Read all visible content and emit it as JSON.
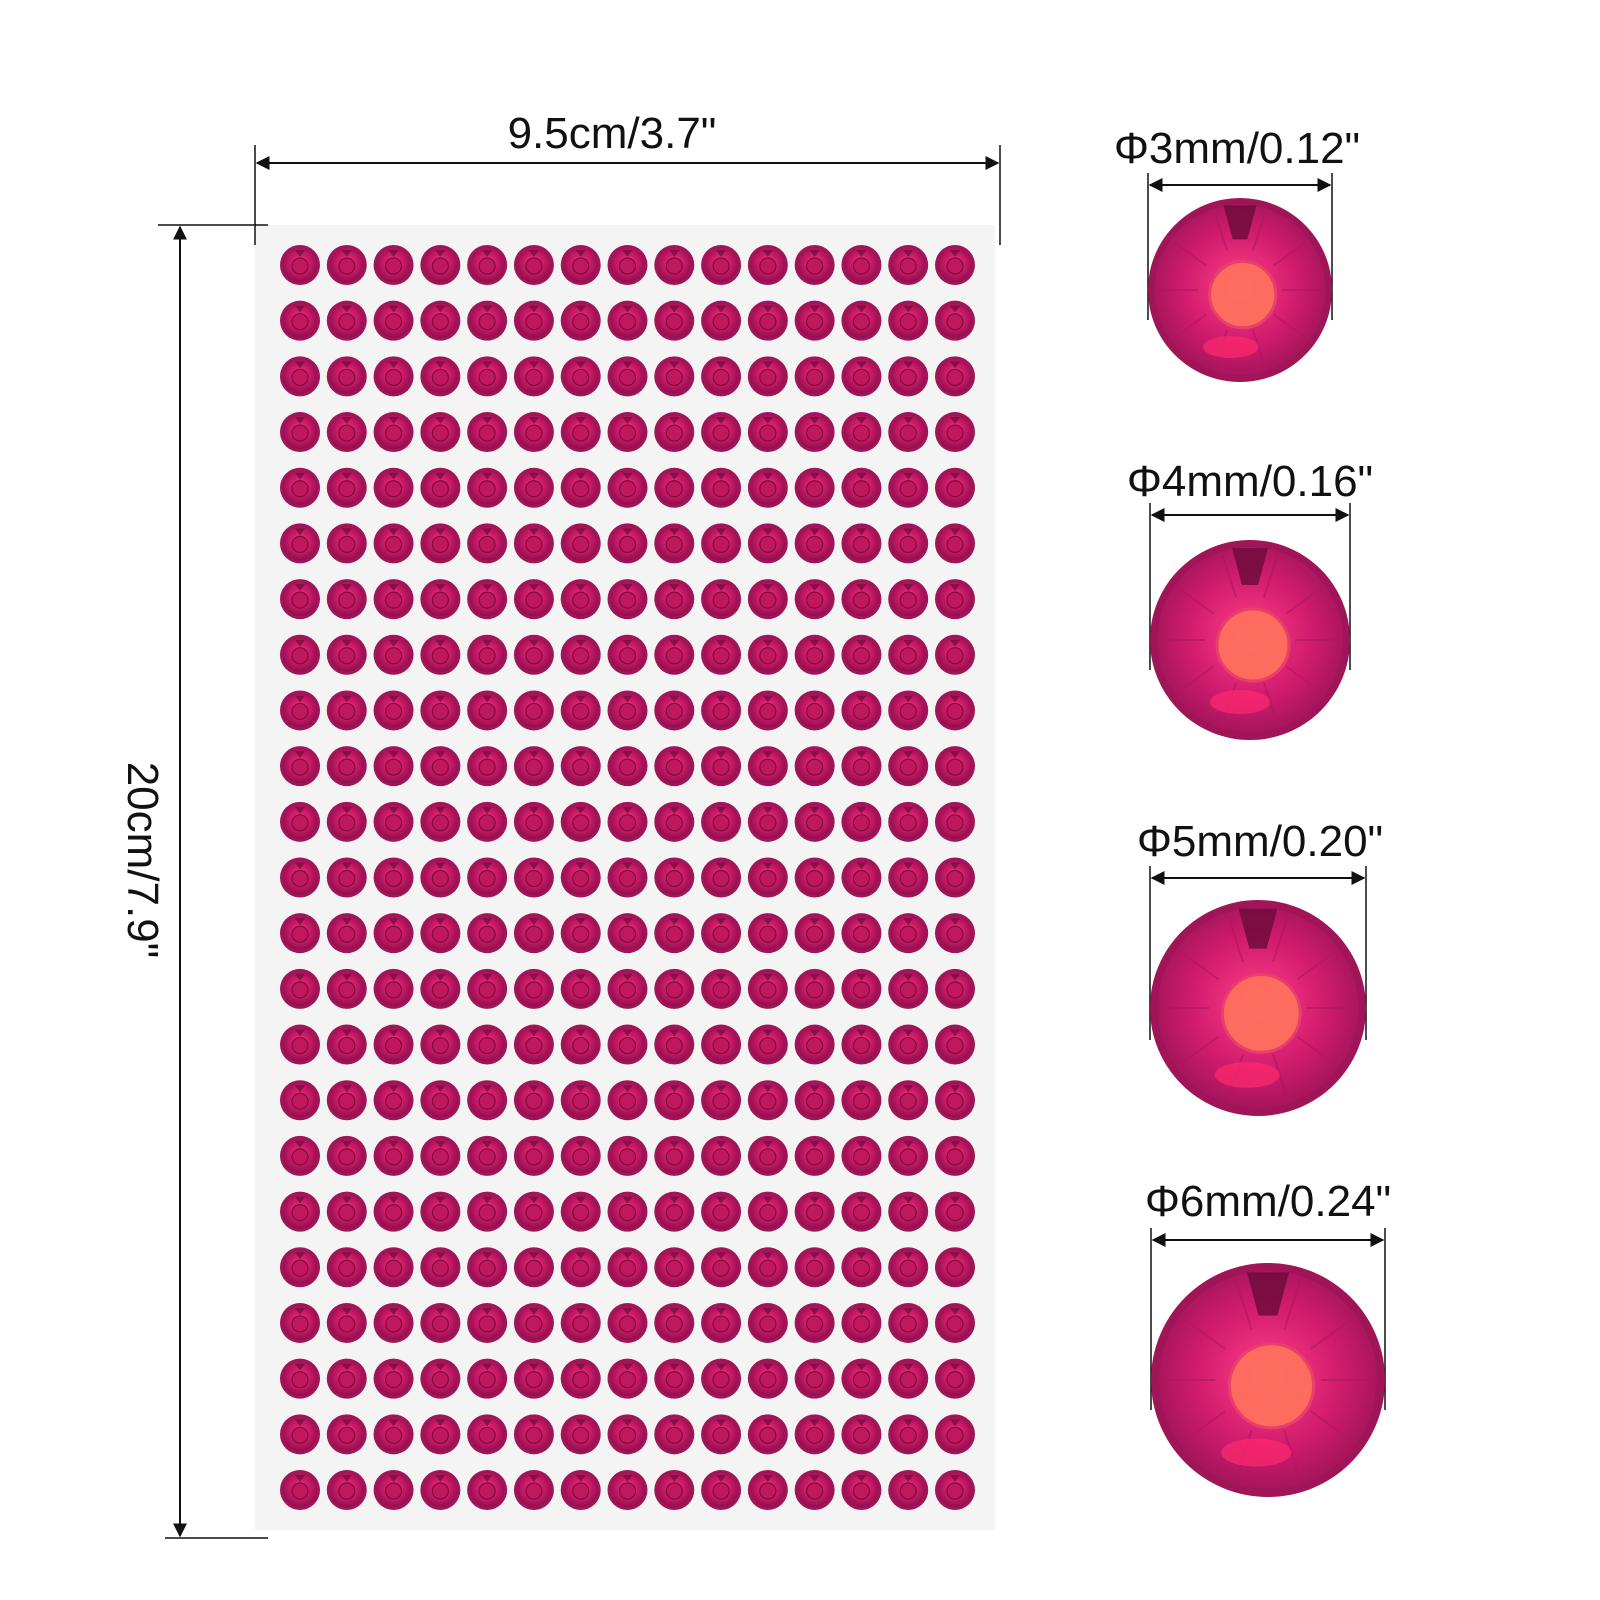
{
  "dimensions": {
    "width_label": "9.5cm/3.7\"",
    "height_label": "20cm/7.9\""
  },
  "sheet": {
    "rows": 23,
    "columns": 15,
    "background_color": "#f4f4f4"
  },
  "gem_colors": {
    "outer": "#a01458",
    "face": "#e0247a",
    "center": "#ff6f5e",
    "dark_facet": "#6e0c3c"
  },
  "sizes": [
    {
      "label": "Φ3mm/0.12\""
    },
    {
      "label": "Φ4mm/0.16\""
    },
    {
      "label": "Φ5mm/0.20\""
    },
    {
      "label": "Φ6mm/0.24\""
    }
  ]
}
